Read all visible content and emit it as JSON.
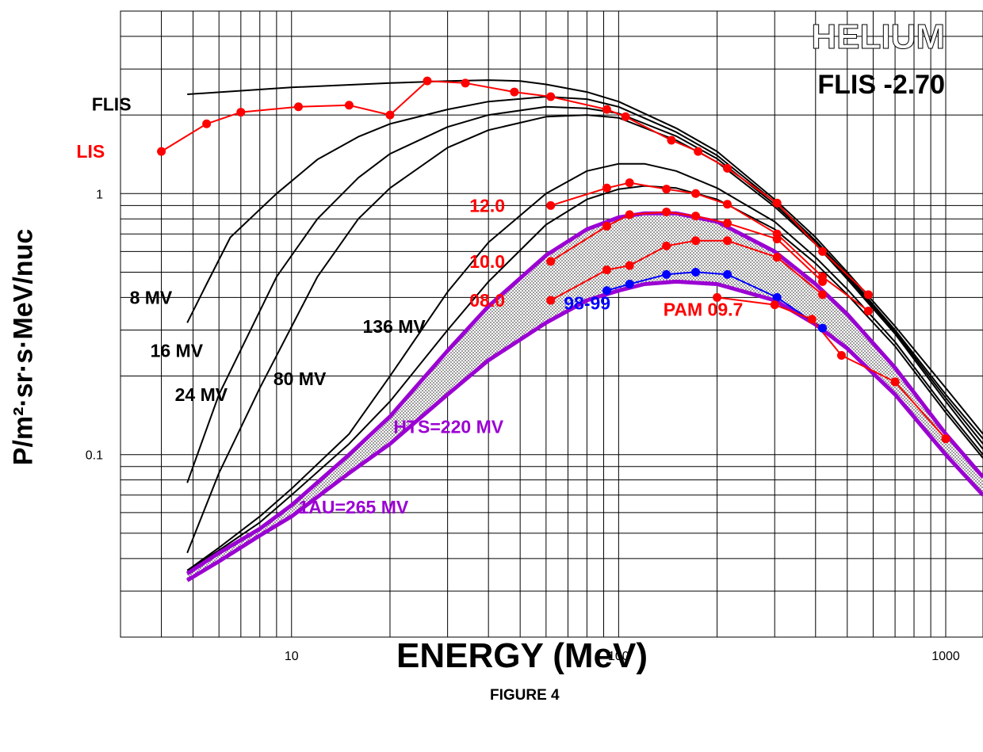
{
  "chart_data": {
    "type": "line",
    "title": "HELIUM",
    "subtitle": "FLIS -2.70",
    "xlabel": "ENERGY (MeV)",
    "ylabel": "P/m²·sr·s·MeV/nuc",
    "caption": "FIGURE 4",
    "x_scale": "log",
    "y_scale": "log",
    "xlim": [
      3,
      1300
    ],
    "ylim": [
      0.02,
      5
    ],
    "x_ticks": [
      10,
      100,
      1000
    ],
    "x_tick_labels": [
      "10",
      "100",
      "1000"
    ],
    "y_ticks": [
      0.1,
      1
    ],
    "y_tick_labels": [
      "0.1",
      "1"
    ],
    "grid": true,
    "series": [
      {
        "name": "FLIS",
        "color": "#000000",
        "width": 2,
        "markers": false,
        "x": [
          4.8,
          10,
          20,
          30,
          40,
          50,
          60,
          80,
          100,
          150,
          200,
          300,
          400,
          500,
          700,
          1000,
          1300
        ],
        "y": [
          2.4,
          2.55,
          2.65,
          2.7,
          2.72,
          2.7,
          2.62,
          2.45,
          2.25,
          1.78,
          1.45,
          0.95,
          0.68,
          0.5,
          0.31,
          0.18,
          0.12
        ]
      },
      {
        "name": "8 MV",
        "color": "#000000",
        "width": 2,
        "markers": false,
        "x": [
          4.8,
          5.5,
          6.5,
          9,
          12,
          16,
          20,
          30,
          40,
          60,
          80,
          100,
          150,
          200,
          300,
          400,
          500,
          700,
          1000,
          1300
        ],
        "y": [
          0.32,
          0.45,
          0.68,
          1.0,
          1.35,
          1.65,
          1.85,
          2.1,
          2.25,
          2.35,
          2.3,
          2.15,
          1.72,
          1.4,
          0.93,
          0.66,
          0.49,
          0.3,
          0.17,
          0.115
        ]
      },
      {
        "name": "16 MV",
        "color": "#000000",
        "width": 2,
        "markers": false,
        "x": [
          4.8,
          6,
          9,
          12,
          16,
          20,
          30,
          40,
          60,
          80,
          100,
          150,
          200,
          300,
          400,
          500,
          700,
          1000,
          1300
        ],
        "y": [
          0.078,
          0.17,
          0.48,
          0.8,
          1.15,
          1.42,
          1.8,
          2.0,
          2.15,
          2.12,
          2.03,
          1.66,
          1.36,
          0.91,
          0.65,
          0.48,
          0.295,
          0.165,
          0.11
        ]
      },
      {
        "name": "24 MV",
        "color": "#000000",
        "width": 2,
        "markers": false,
        "x": [
          4.8,
          6,
          8,
          12,
          16,
          20,
          30,
          40,
          60,
          80,
          100,
          150,
          200,
          300,
          400,
          500,
          700,
          1000,
          1300
        ],
        "y": [
          0.042,
          0.085,
          0.18,
          0.48,
          0.8,
          1.05,
          1.5,
          1.75,
          1.97,
          2.0,
          1.95,
          1.6,
          1.32,
          0.89,
          0.64,
          0.47,
          0.29,
          0.16,
          0.105
        ]
      },
      {
        "name": "80 MV",
        "color": "#000000",
        "width": 2,
        "markers": false,
        "x": [
          4.8,
          6,
          8,
          10,
          15,
          20,
          30,
          40,
          60,
          80,
          100,
          120,
          150,
          200,
          300,
          400,
          500,
          700,
          1000,
          1300
        ],
        "y": [
          0.036,
          0.044,
          0.058,
          0.074,
          0.12,
          0.2,
          0.42,
          0.65,
          1.0,
          1.22,
          1.3,
          1.3,
          1.22,
          1.05,
          0.78,
          0.57,
          0.43,
          0.27,
          0.15,
          0.1
        ]
      },
      {
        "name": "136 MV",
        "color": "#000000",
        "width": 2,
        "markers": false,
        "x": [
          4.8,
          6,
          8,
          10,
          15,
          20,
          30,
          40,
          60,
          80,
          100,
          120,
          150,
          200,
          300,
          400,
          500,
          700,
          1000,
          1300
        ],
        "y": [
          0.036,
          0.043,
          0.055,
          0.07,
          0.11,
          0.16,
          0.3,
          0.46,
          0.76,
          0.95,
          1.04,
          1.07,
          1.05,
          0.95,
          0.73,
          0.54,
          0.41,
          0.26,
          0.145,
          0.097
        ]
      },
      {
        "name": "HTS=220 MV",
        "color": "#9b00d3",
        "width": 5,
        "markers": false,
        "x": [
          4.8,
          6,
          8,
          10,
          15,
          20,
          30,
          40,
          60,
          80,
          100,
          120,
          150,
          200,
          300,
          400,
          500,
          700,
          1000,
          1300
        ],
        "y": [
          0.035,
          0.042,
          0.052,
          0.064,
          0.1,
          0.14,
          0.25,
          0.37,
          0.58,
          0.73,
          0.81,
          0.84,
          0.84,
          0.78,
          0.6,
          0.45,
          0.345,
          0.215,
          0.12,
          0.082
        ]
      },
      {
        "name": "1AU=265 MV",
        "color": "#9b00d3",
        "width": 5,
        "markers": false,
        "x": [
          4.8,
          6,
          8,
          10,
          15,
          20,
          30,
          40,
          60,
          80,
          100,
          120,
          150,
          200,
          300,
          400,
          500,
          700,
          1000,
          1300
        ],
        "y": [
          0.033,
          0.039,
          0.049,
          0.058,
          0.085,
          0.11,
          0.17,
          0.23,
          0.32,
          0.39,
          0.425,
          0.45,
          0.46,
          0.45,
          0.39,
          0.315,
          0.255,
          0.17,
          0.1,
          0.07
        ]
      },
      {
        "name": "LIS",
        "color": "#ff0000",
        "width": 2,
        "markers": true,
        "x": [
          4,
          5.5,
          7,
          10.5,
          15,
          20,
          26,
          34,
          48,
          62,
          92,
          105,
          145,
          175,
          215,
          305,
          420,
          580
        ],
        "y": [
          1.45,
          1.85,
          2.05,
          2.15,
          2.18,
          2.0,
          2.7,
          2.65,
          2.45,
          2.35,
          2.1,
          1.97,
          1.6,
          1.45,
          1.25,
          0.92,
          0.6,
          0.41
        ]
      },
      {
        "name": "12.0",
        "color": "#ff0000",
        "width": 2,
        "markers": true,
        "x": [
          62,
          92,
          108,
          140,
          172,
          215,
          305,
          420,
          580
        ],
        "y": [
          0.9,
          1.05,
          1.1,
          1.04,
          1.0,
          0.91,
          0.7,
          0.48,
          0.355
        ]
      },
      {
        "name": "10.0",
        "color": "#ff0000",
        "width": 2,
        "markers": true,
        "x": [
          62,
          92,
          108,
          140,
          172,
          215,
          305,
          420
        ],
        "y": [
          0.55,
          0.75,
          0.83,
          0.85,
          0.82,
          0.77,
          0.67,
          0.46
        ]
      },
      {
        "name": "08.0",
        "color": "#ff0000",
        "width": 2,
        "markers": true,
        "x": [
          62,
          92,
          108,
          140,
          172,
          215,
          305,
          420
        ],
        "y": [
          0.39,
          0.51,
          0.53,
          0.63,
          0.66,
          0.66,
          0.57,
          0.41
        ]
      },
      {
        "name": "98-99",
        "color": "#0000ff",
        "width": 2,
        "markers": true,
        "x": [
          92,
          108,
          140,
          172,
          215,
          305,
          420
        ],
        "y": [
          0.425,
          0.45,
          0.49,
          0.5,
          0.49,
          0.4,
          0.305
        ]
      },
      {
        "name": "PAM 09.7",
        "color": "#ff0000",
        "width": 2,
        "markers": true,
        "x": [
          200,
          300,
          390,
          480,
          700,
          1000
        ],
        "y": [
          0.4,
          0.375,
          0.33,
          0.24,
          0.19,
          0.115
        ]
      }
    ],
    "annotations": [
      {
        "text": "FLIS",
        "color": "#000000",
        "x": 2.45,
        "y": 2.2
      },
      {
        "text": "LIS",
        "color": "#ff0000",
        "x": 2.2,
        "y": 1.45
      },
      {
        "text": "8 MV",
        "color": "#000000",
        "x": 3.2,
        "y": 0.4
      },
      {
        "text": "16 MV",
        "color": "#000000",
        "x": 3.7,
        "y": 0.25
      },
      {
        "text": "24 MV",
        "color": "#000000",
        "x": 4.4,
        "y": 0.17
      },
      {
        "text": "80 MV",
        "color": "#000000",
        "x": 8.8,
        "y": 0.195
      },
      {
        "text": "136 MV",
        "color": "#000000",
        "x": 16.5,
        "y": 0.31
      },
      {
        "text": "HTS=220 MV",
        "color": "#9b00d3",
        "x": 20.5,
        "y": 0.128
      },
      {
        "text": "1AU=265 MV",
        "color": "#9b00d3",
        "x": 10.5,
        "y": 0.063
      },
      {
        "text": "12.0",
        "color": "#ff0000",
        "x": 35,
        "y": 0.9
      },
      {
        "text": "10.0",
        "color": "#ff0000",
        "x": 35,
        "y": 0.55
      },
      {
        "text": "08.0",
        "color": "#ff0000",
        "x": 35,
        "y": 0.39
      },
      {
        "text": "98-99",
        "color": "#0000ff",
        "x": 68,
        "y": 0.38
      },
      {
        "text": "PAM 09.7",
        "color": "#ff0000",
        "x": 137,
        "y": 0.36
      }
    ],
    "band_fill": "#bfbfbf"
  }
}
